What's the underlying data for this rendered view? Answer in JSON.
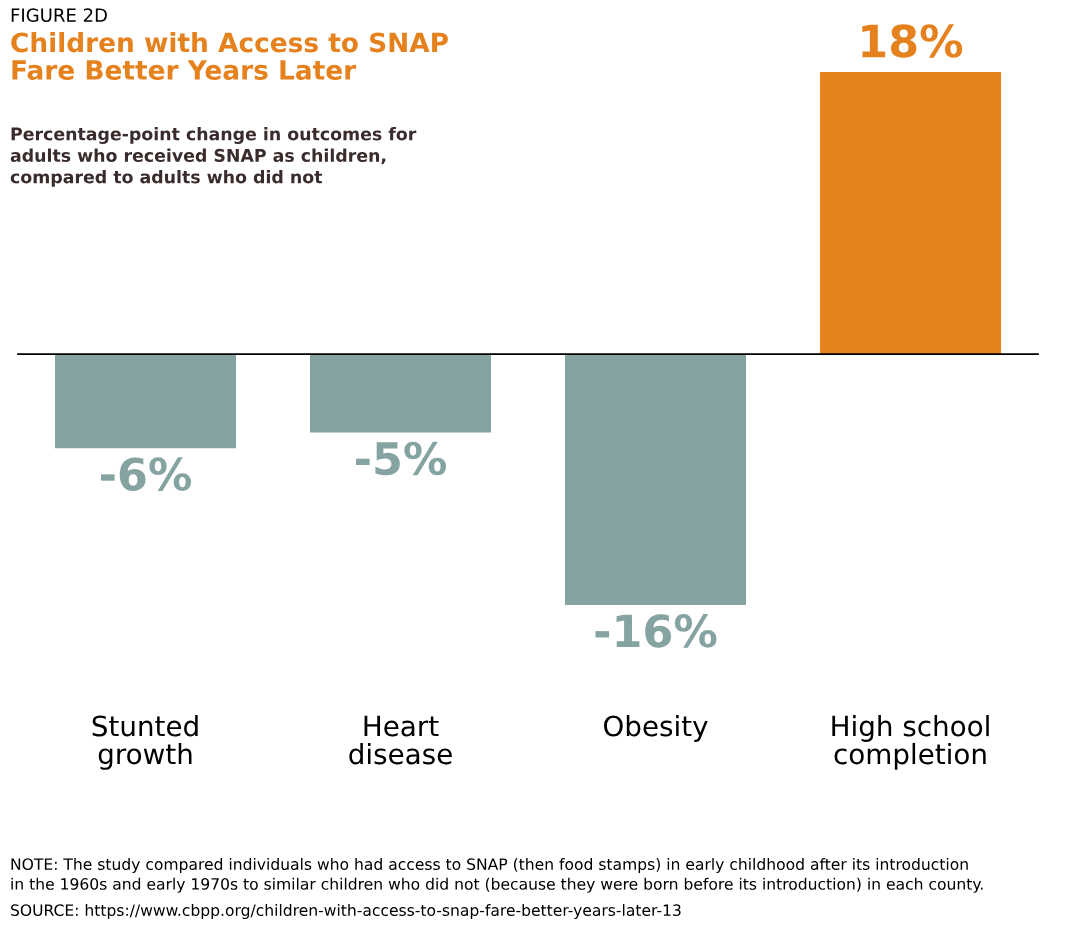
{
  "chart_data": {
    "type": "bar",
    "title": "Children with Access to SNAP\nFare Better Years Later",
    "subtitle": "Percentage-point change in outcomes for\nadults who received SNAP as children,\ncompared to adults who did not",
    "annotations": [
      "FIGURE 2D",
      "NOTE: The study compared individuals who had access to SNAP (then food stamps) in early childhood after its introduction\nin the 1960s and early 1970s to similar children who did not (because they were born before its introduction) in each county.",
      "SOURCE: https://www.cbpp.org/children-with-access-to-snap-fare-better-years-later-13"
    ],
    "categories": [
      "Stunted\ngrowth",
      "Heart\ndisease",
      "Obesity",
      "High school\ncompletion"
    ],
    "values": [
      -6,
      -5,
      -16,
      18
    ],
    "colors": [
      "#84a3a1",
      "#84a3a1",
      "#84a3a1",
      "#e6821e"
    ],
    "value_labels": [
      "-6%",
      "-5%",
      "-16%",
      "18%"
    ]
  }
}
